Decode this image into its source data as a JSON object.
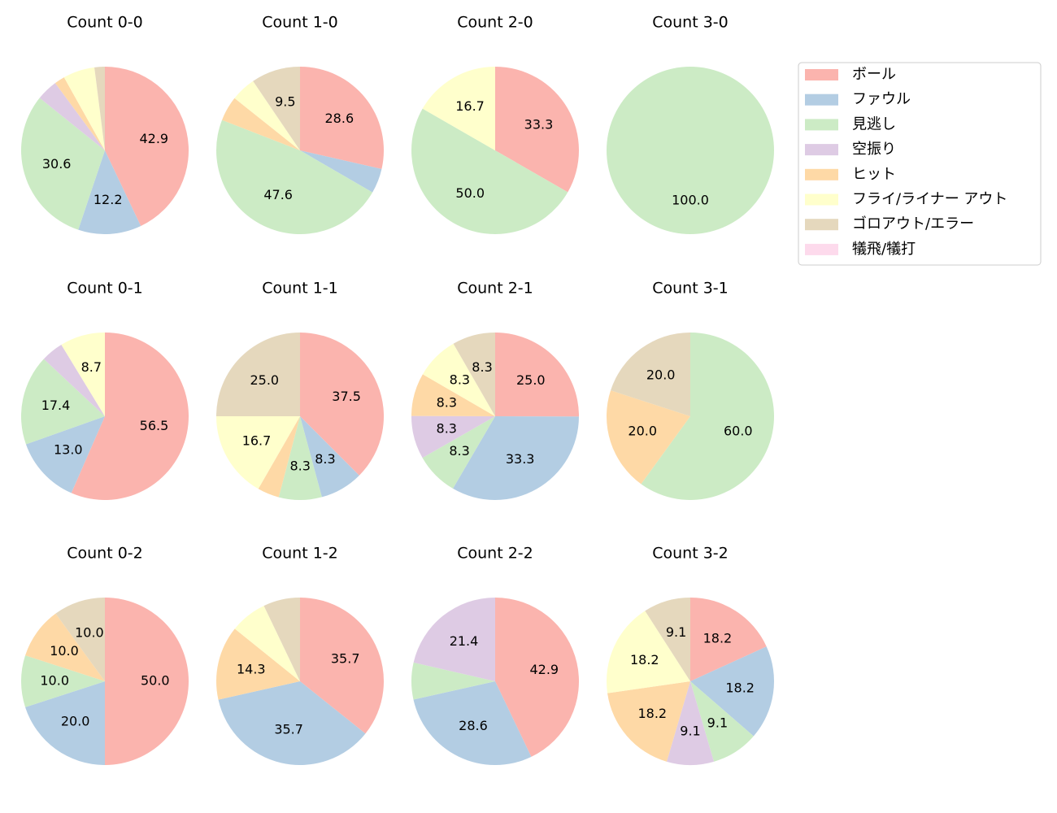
{
  "chart_data": [
    {
      "type": "pie",
      "title": "Count 0-0",
      "categories": [
        "ボール",
        "ファウル",
        "見逃し",
        "空振り",
        "ヒット",
        "フライ/ライナー アウト",
        "ゴロアウト/エラー"
      ],
      "values": [
        42.9,
        12.2,
        30.6,
        4.1,
        2.0,
        6.1,
        2.0
      ],
      "value_labels": [
        "42.9",
        "12.2",
        "30.6",
        null,
        null,
        null,
        null
      ]
    },
    {
      "type": "pie",
      "title": "Count 1-0",
      "categories": [
        "ボール",
        "ファウル",
        "見逃し",
        "ヒット",
        "フライ/ライナー アウト",
        "ゴロアウト/エラー"
      ],
      "values": [
        28.6,
        4.8,
        47.6,
        4.8,
        4.8,
        9.5
      ],
      "value_labels": [
        "28.6",
        null,
        "47.6",
        null,
        null,
        "9.5"
      ]
    },
    {
      "type": "pie",
      "title": "Count 2-0",
      "categories": [
        "ボール",
        "見逃し",
        "フライ/ライナー アウト"
      ],
      "values": [
        33.3,
        50,
        16.7
      ],
      "value_labels": [
        "33.3",
        "50.0",
        "16.7"
      ]
    },
    {
      "type": "pie",
      "title": "Count 3-0",
      "categories": [
        "見逃し"
      ],
      "values": [
        100
      ],
      "value_labels": [
        "100.0"
      ]
    },
    {
      "type": "pie",
      "title": "Count 0-1",
      "categories": [
        "ボール",
        "ファウル",
        "見逃し",
        "空振り",
        "フライ/ライナー アウト"
      ],
      "values": [
        56.5,
        13.0,
        17.4,
        4.3,
        8.7
      ],
      "value_labels": [
        "56.5",
        "13.0",
        "17.4",
        null,
        "8.7"
      ]
    },
    {
      "type": "pie",
      "title": "Count 1-1",
      "categories": [
        "ボール",
        "ファウル",
        "見逃し",
        "ヒット",
        "フライ/ライナー アウト",
        "ゴロアウト/エラー"
      ],
      "values": [
        37.5,
        8.3,
        8.3,
        4.2,
        16.7,
        25
      ],
      "value_labels": [
        "37.5",
        "8.3",
        "8.3",
        null,
        "16.7",
        "25.0"
      ]
    },
    {
      "type": "pie",
      "title": "Count 2-1",
      "categories": [
        "ボール",
        "ファウル",
        "見逃し",
        "空振り",
        "ヒット",
        "フライ/ライナー アウト",
        "ゴロアウト/エラー"
      ],
      "values": [
        25,
        33.3,
        8.3,
        8.3,
        8.3,
        8.3,
        8.3
      ],
      "value_labels": [
        "25.0",
        "33.3",
        "8.3",
        "8.3",
        "8.3",
        "8.3",
        "8.3"
      ]
    },
    {
      "type": "pie",
      "title": "Count 3-1",
      "categories": [
        "見逃し",
        "ヒット",
        "ゴロアウト/エラー"
      ],
      "values": [
        60,
        20,
        20
      ],
      "value_labels": [
        "60.0",
        "20.0",
        "20.0"
      ]
    },
    {
      "type": "pie",
      "title": "Count 0-2",
      "categories": [
        "ボール",
        "ファウル",
        "見逃し",
        "ヒット",
        "ゴロアウト/エラー"
      ],
      "values": [
        50,
        20,
        10,
        10,
        10
      ],
      "value_labels": [
        "50.0",
        "20.0",
        "10.0",
        "10.0",
        "10.0"
      ]
    },
    {
      "type": "pie",
      "title": "Count 1-2",
      "categories": [
        "ボール",
        "ファウル",
        "ヒット",
        "フライ/ライナー アウト",
        "ゴロアウト/エラー"
      ],
      "values": [
        35.7,
        35.7,
        14.3,
        7.1,
        7.1
      ],
      "value_labels": [
        "35.7",
        "35.7",
        "14.3",
        null,
        null
      ]
    },
    {
      "type": "pie",
      "title": "Count 2-2",
      "categories": [
        "ボール",
        "ファウル",
        "見逃し",
        "空振り"
      ],
      "values": [
        42.9,
        28.6,
        7.1,
        21.4
      ],
      "value_labels": [
        "42.9",
        "28.6",
        null,
        "21.4"
      ]
    },
    {
      "type": "pie",
      "title": "Count 3-2",
      "categories": [
        "ボール",
        "ファウル",
        "見逃し",
        "空振り",
        "ヒット",
        "フライ/ライナー アウト",
        "ゴロアウト/エラー"
      ],
      "values": [
        18.2,
        18.2,
        9.1,
        9.1,
        18.2,
        18.2,
        9.1
      ],
      "value_labels": [
        "18.2",
        "18.2",
        "9.1",
        "9.1",
        "18.2",
        "18.2",
        "9.1"
      ]
    }
  ],
  "legend": {
    "position": "upper right",
    "entries": [
      {
        "name": "ボール",
        "color": "#fbb4ae"
      },
      {
        "name": "ファウル",
        "color": "#b3cde3"
      },
      {
        "name": "見逃し",
        "color": "#ccebc5"
      },
      {
        "name": "空振り",
        "color": "#decbe4"
      },
      {
        "name": "ヒット",
        "color": "#fed9a6"
      },
      {
        "name": "フライ/ライナー アウト",
        "color": "#ffffcc"
      },
      {
        "name": "ゴロアウト/エラー",
        "color": "#e5d8bd"
      },
      {
        "name": "犠飛/犠打",
        "color": "#fddaec"
      }
    ]
  }
}
